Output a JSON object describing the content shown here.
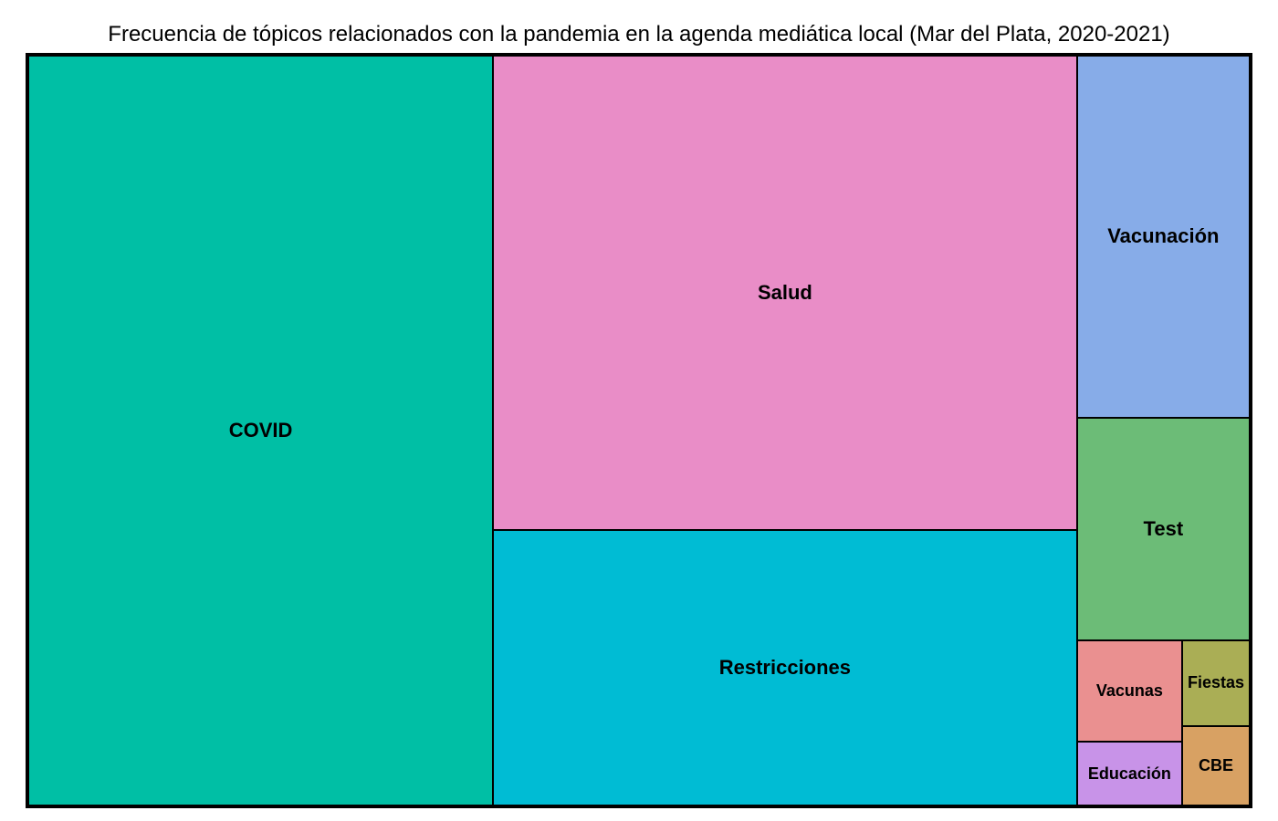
{
  "chart_data": {
    "type": "treemap",
    "title": "Frecuencia de tópicos relacionados con la pandemia en la agenda mediática local (Mar del Plata, 2020-2021)",
    "items": [
      {
        "label": "COVID",
        "value": 39.0,
        "color": "#00BFA5"
      },
      {
        "label": "Salud",
        "value": 31.0,
        "color": "#E98DC7"
      },
      {
        "label": "Restricciones",
        "value": 18.0,
        "color": "#00BCD4"
      },
      {
        "label": "Vacunación",
        "value": 7.0,
        "color": "#87ACE8"
      },
      {
        "label": "Test",
        "value": 4.3,
        "color": "#6CBC77"
      },
      {
        "label": "Vacunas",
        "value": 1.2,
        "color": "#EA9090"
      },
      {
        "label": "Educación",
        "value": 0.75,
        "color": "#C893E8"
      },
      {
        "label": "Fiestas",
        "value": 0.65,
        "color": "#AAAE55"
      },
      {
        "label": "CBE",
        "value": 0.6,
        "color": "#D8A163"
      }
    ]
  }
}
